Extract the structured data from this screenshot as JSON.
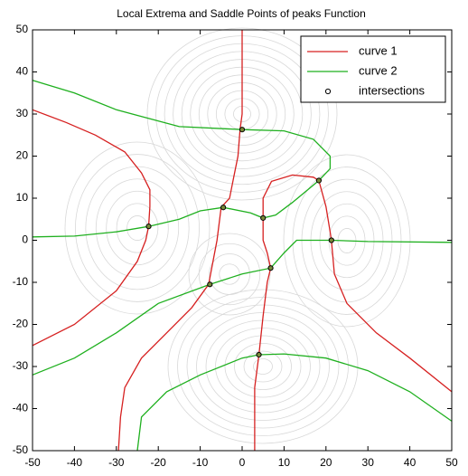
{
  "chart_data": {
    "type": "line",
    "title": "Local Extrema and Saddle Points of peaks Function",
    "xlim": [
      -50,
      50
    ],
    "ylim": [
      -50,
      50
    ],
    "xticks": [
      -50,
      -40,
      -30,
      -20,
      -10,
      0,
      10,
      20,
      30,
      40,
      50
    ],
    "yticks": [
      -50,
      -40,
      -30,
      -20,
      -10,
      0,
      10,
      20,
      30,
      40,
      50
    ],
    "legend": "top-right",
    "series": [
      {
        "name": "curve 1",
        "color": "#d62020",
        "style": "line",
        "x": [
          0,
          0,
          0,
          -0.5,
          -1,
          -2,
          -3,
          -5,
          -6,
          -8,
          -12,
          -18,
          -24,
          -28,
          -29,
          -29.5,
          null,
          -50,
          -42,
          -35,
          -28,
          -24,
          -22,
          -22,
          -22.3,
          -23,
          -25,
          -30,
          -40,
          -50,
          null,
          3,
          3,
          4,
          5,
          6,
          6.8,
          6,
          5,
          5,
          5,
          7,
          12,
          17,
          18.3,
          20,
          21,
          21.3,
          22,
          25,
          32,
          40,
          50
        ],
        "values": [
          50,
          40,
          30,
          26.3,
          20,
          15,
          10,
          7.8,
          0,
          -10.5,
          -16,
          -22,
          -28,
          -35,
          -42,
          -50,
          null,
          31,
          28,
          25,
          21,
          16,
          12,
          8,
          3.3,
          0,
          -5,
          -12,
          -20,
          -25,
          null,
          -50,
          -35,
          -27.2,
          -18,
          -10,
          -6.6,
          -3,
          0,
          5.3,
          10,
          14,
          15.5,
          15,
          14.2,
          8,
          2,
          0,
          -8,
          -15,
          -22,
          -28,
          -36
        ]
      },
      {
        "name": "curve 2",
        "color": "#1fb01f",
        "style": "line",
        "x": [
          -50,
          -40,
          -30,
          -15,
          0,
          10,
          17,
          21,
          21,
          18.3,
          12,
          8,
          5,
          2,
          -4.5,
          -10,
          -15,
          -22.3,
          -30,
          -40,
          -50,
          null,
          -50,
          -40,
          -30,
          -20,
          -7.7,
          0,
          6.8,
          10,
          13,
          21.3,
          30,
          50,
          null,
          -25,
          -24,
          -18,
          -10,
          0,
          4,
          10,
          20,
          30,
          40,
          50
        ],
        "values": [
          38,
          35,
          31,
          27,
          26.3,
          26,
          24,
          20,
          17,
          14.2,
          9,
          6,
          5.3,
          6.5,
          7.8,
          7,
          5,
          3.3,
          2,
          1,
          0.8,
          null,
          -32,
          -28,
          -22,
          -15,
          -10.5,
          -8,
          -6.6,
          -3,
          0,
          0,
          -0.3,
          -0.5,
          null,
          -50,
          -42,
          -36,
          -32,
          -28,
          -27.2,
          -27,
          -28,
          -31,
          -36,
          -43
        ]
      },
      {
        "name": "intersections",
        "color": "#000000",
        "style": "marker",
        "x": [
          0,
          18.3,
          -22.3,
          -4.5,
          5,
          21.3,
          6.8,
          -7.7,
          4
        ],
        "values": [
          26.3,
          14.2,
          3.3,
          7.8,
          5.3,
          0,
          -6.6,
          -10.5,
          -27.2
        ]
      }
    ]
  }
}
